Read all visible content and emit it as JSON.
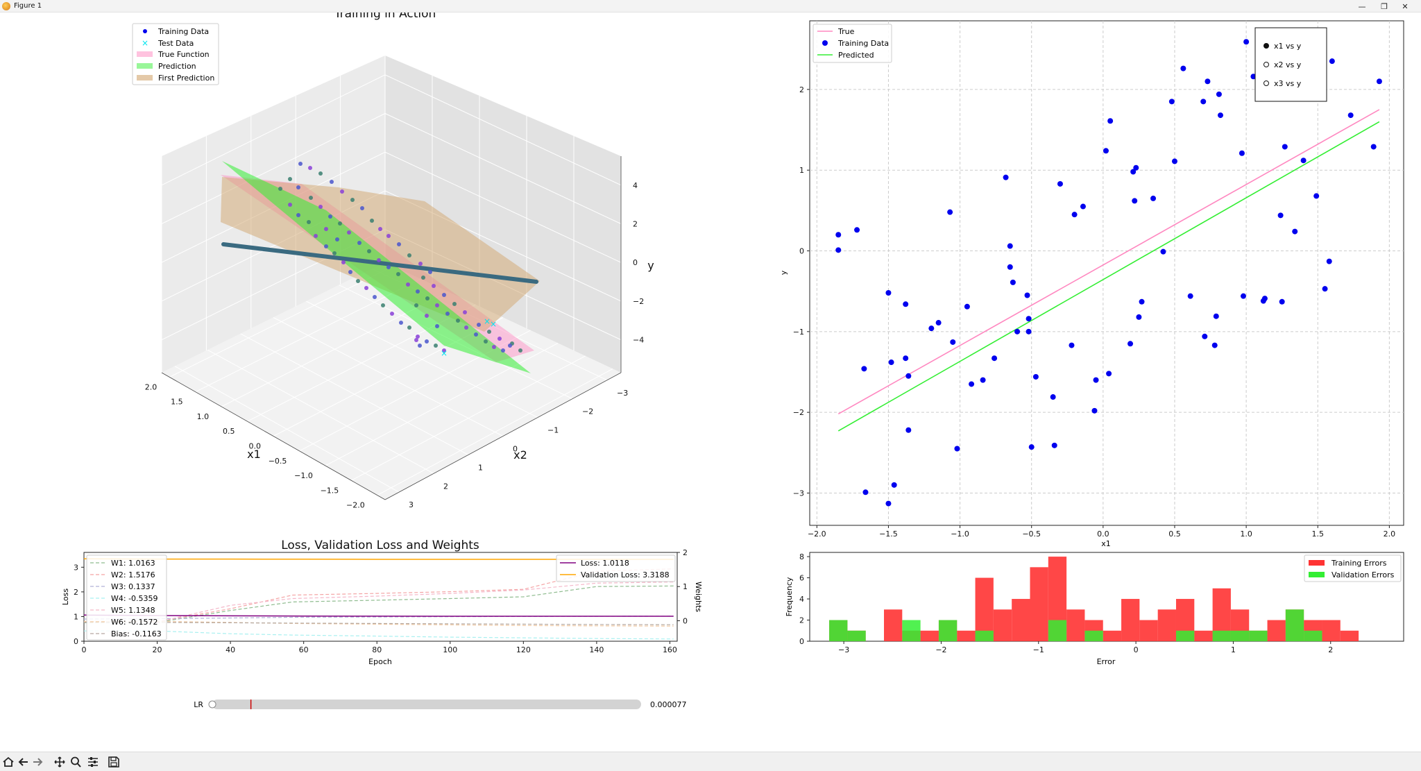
{
  "window": {
    "title": "Figure 1",
    "controls": [
      "minimize-icon",
      "maximize-icon",
      "close-icon"
    ]
  },
  "toolbar": {
    "buttons": [
      "home-icon",
      "back-icon",
      "forward-icon",
      "pan-icon",
      "zoom-icon",
      "configure-subplots-icon",
      "save-icon"
    ]
  },
  "colors": {
    "true": "#ff88c0",
    "pred": "#33ee33",
    "first": "#d2a56e",
    "train": "#0000ee",
    "test": "#00e5ee",
    "loss": "#800080",
    "val": "#ffa500",
    "train_err": "#ff3333",
    "val_err": "#33ee33"
  },
  "chart_data": [
    {
      "type": "scatter",
      "title": "Training in Action",
      "xlabel": "x1",
      "ylabel": "x2",
      "zlabel": "y",
      "x1_ticks": [
        "2.0",
        "1.5",
        "1.0",
        "0.5",
        "0.0",
        "−0.5",
        "−1.0",
        "−1.5",
        "−2.0"
      ],
      "x2_ticks": [
        "−3",
        "−2",
        "−1",
        "0",
        "1",
        "2",
        "3"
      ],
      "y_ticks": [
        "4",
        "2",
        "0",
        "−2",
        "−4"
      ],
      "legend": [
        "Training Data",
        "Test Data",
        "True Function",
        "Prediction",
        "First Prediction"
      ],
      "legend_position": "top-left"
    },
    {
      "type": "line",
      "xlabel": "x1",
      "ylabel": "y",
      "xlim": [
        -2.05,
        2.1
      ],
      "ylim": [
        -3.4,
        2.85
      ],
      "xticks": [
        -2.0,
        -1.5,
        -1.0,
        -0.5,
        0.0,
        0.5,
        1.0,
        1.5,
        2.0
      ],
      "yticks": [
        -3,
        -2,
        -1,
        0,
        1,
        2
      ],
      "legend": [
        "True",
        "Training Data",
        "Predicted"
      ],
      "radio": [
        "x1 vs y",
        "x2 vs y",
        "x3 vs y"
      ],
      "radio_selected": "x1 vs y",
      "series": [
        {
          "name": "True",
          "x": [
            -1.85,
            1.93
          ],
          "y": [
            -2.02,
            1.75
          ]
        },
        {
          "name": "Predicted",
          "x": [
            -1.85,
            1.93
          ],
          "y": [
            -2.23,
            1.6
          ]
        }
      ],
      "points": [
        [
          -1.85,
          0.2
        ],
        [
          -1.85,
          0.01
        ],
        [
          -1.72,
          0.26
        ],
        [
          -1.67,
          -1.46
        ],
        [
          -1.66,
          -2.99
        ],
        [
          -1.5,
          -3.13
        ],
        [
          -1.5,
          -0.52
        ],
        [
          -1.48,
          -1.38
        ],
        [
          -1.46,
          -2.9
        ],
        [
          -1.38,
          -0.66
        ],
        [
          -1.38,
          -1.33
        ],
        [
          -1.36,
          -1.55
        ],
        [
          -1.36,
          -2.22
        ],
        [
          -1.2,
          -0.96
        ],
        [
          -1.15,
          -0.89
        ],
        [
          -1.07,
          0.48
        ],
        [
          -1.05,
          -1.13
        ],
        [
          -1.02,
          -2.45
        ],
        [
          -0.95,
          -0.69
        ],
        [
          -0.92,
          -1.65
        ],
        [
          -0.84,
          -1.6
        ],
        [
          -0.76,
          -1.33
        ],
        [
          -0.68,
          0.91
        ],
        [
          -0.65,
          0.06
        ],
        [
          -0.65,
          -0.2
        ],
        [
          -0.63,
          -0.39
        ],
        [
          -0.6,
          -1.0
        ],
        [
          -0.53,
          -0.55
        ],
        [
          -0.52,
          -0.84
        ],
        [
          -0.52,
          -1.0
        ],
        [
          -0.5,
          -2.43
        ],
        [
          -0.47,
          -1.56
        ],
        [
          -0.35,
          -1.81
        ],
        [
          -0.34,
          -2.41
        ],
        [
          -0.3,
          0.83
        ],
        [
          -0.22,
          -1.17
        ],
        [
          -0.2,
          0.45
        ],
        [
          -0.14,
          0.55
        ],
        [
          -0.06,
          -1.98
        ],
        [
          -0.05,
          -1.6
        ],
        [
          0.02,
          1.24
        ],
        [
          0.05,
          1.61
        ],
        [
          0.04,
          -1.52
        ],
        [
          0.19,
          -1.15
        ],
        [
          0.21,
          0.98
        ],
        [
          0.23,
          1.03
        ],
        [
          0.22,
          0.62
        ],
        [
          0.25,
          -0.82
        ],
        [
          0.27,
          -0.63
        ],
        [
          0.35,
          0.65
        ],
        [
          0.42,
          -0.01
        ],
        [
          0.48,
          1.85
        ],
        [
          0.5,
          1.11
        ],
        [
          0.56,
          2.26
        ],
        [
          0.61,
          -0.56
        ],
        [
          0.7,
          1.85
        ],
        [
          0.73,
          2.1
        ],
        [
          0.71,
          -1.06
        ],
        [
          0.78,
          -1.17
        ],
        [
          0.81,
          1.94
        ],
        [
          0.82,
          1.68
        ],
        [
          0.79,
          -0.81
        ],
        [
          0.97,
          1.21
        ],
        [
          0.98,
          -0.56
        ],
        [
          1.0,
          2.59
        ],
        [
          1.05,
          2.16
        ],
        [
          1.12,
          -0.62
        ],
        [
          1.13,
          -0.59
        ],
        [
          1.24,
          0.44
        ],
        [
          1.25,
          -0.63
        ],
        [
          1.27,
          1.29
        ],
        [
          1.34,
          0.24
        ],
        [
          1.4,
          1.12
        ],
        [
          1.49,
          0.68
        ],
        [
          1.55,
          -0.47
        ],
        [
          1.58,
          -0.13
        ],
        [
          1.6,
          2.35
        ],
        [
          1.73,
          1.68
        ],
        [
          1.89,
          1.29
        ],
        [
          1.93,
          2.1
        ]
      ]
    },
    {
      "type": "line",
      "title": "Loss, Validation Loss and Weights",
      "xlabel": "Epoch",
      "ylabel": "Loss",
      "ylabel_right": "Weights",
      "xlim": [
        0,
        162
      ],
      "ylim": [
        0,
        3.6
      ],
      "xticks": [
        0,
        20,
        40,
        60,
        80,
        100,
        120,
        140,
        160
      ],
      "yticks": [
        0,
        1,
        2,
        3
      ],
      "yticks_right": [
        0,
        1,
        2
      ],
      "ylim_right": [
        -0.6,
        2.0
      ],
      "legend_weights": [
        "W1: 1.0163",
        "W2: 1.5176",
        "W3: 0.1337",
        "W4: -0.5359",
        "W5: 1.1348",
        "W6: -0.1572",
        "Bias: -0.1163"
      ],
      "legend_loss": [
        "Loss: 1.0118",
        "Validation Loss: 3.3188"
      ],
      "series": [
        {
          "name": "Loss: 1.0118",
          "x": [
            0,
            20,
            40,
            60,
            80,
            100,
            120,
            140,
            161
          ],
          "y": [
            1.06,
            1.04,
            1.03,
            1.02,
            1.015,
            1.013,
            1.012,
            1.012,
            1.0118
          ]
        },
        {
          "name": "Validation Loss: 3.3188",
          "x": [
            0,
            20,
            40,
            60,
            80,
            100,
            120,
            140,
            161
          ],
          "y": [
            3.34,
            3.33,
            3.33,
            3.325,
            3.32,
            3.32,
            3.319,
            3.319,
            3.3188
          ]
        }
      ],
      "weights": [
        {
          "name": "W1: 1.0163",
          "color": "#8fbc8f",
          "x": [
            0,
            20,
            40,
            57,
            80,
            100,
            120,
            140,
            161
          ],
          "y": [
            -0.06,
            -0.05,
            0.3,
            0.55,
            0.6,
            0.65,
            0.7,
            1.0,
            1.0163
          ]
        },
        {
          "name": "W2: 1.5176",
          "color": "#f4a4a4",
          "x": [
            0,
            20,
            40,
            57,
            80,
            100,
            120,
            140,
            161
          ],
          "y": [
            -0.04,
            -0.03,
            0.35,
            0.75,
            0.8,
            0.85,
            0.92,
            1.45,
            1.5176
          ]
        },
        {
          "name": "W3: 0.1337",
          "color": "#b0b0d8",
          "x": [
            0,
            20,
            40,
            57,
            80,
            100,
            120,
            140,
            161
          ],
          "y": [
            0.05,
            0.06,
            0.08,
            0.1,
            0.11,
            0.12,
            0.125,
            0.13,
            0.1337
          ]
        },
        {
          "name": "W4: -0.5359",
          "color": "#a8f0f0",
          "x": [
            0,
            20,
            40,
            57,
            80,
            100,
            120,
            140,
            161
          ],
          "y": [
            -0.3,
            -0.3,
            -0.38,
            -0.42,
            -0.45,
            -0.48,
            -0.5,
            -0.52,
            -0.5359
          ]
        },
        {
          "name": "W5: 1.1348",
          "color": "#f4b6c8",
          "x": [
            0,
            20,
            40,
            57,
            80,
            100,
            120,
            140,
            161
          ],
          "y": [
            -0.05,
            -0.04,
            0.45,
            0.65,
            0.72,
            0.8,
            0.9,
            1.1,
            1.1348
          ]
        },
        {
          "name": "W6: -0.1572",
          "color": "#f0c8a0",
          "x": [
            0,
            20,
            40,
            57,
            80,
            100,
            120,
            140,
            161
          ],
          "y": [
            -0.02,
            -0.02,
            -0.05,
            -0.08,
            -0.1,
            -0.12,
            -0.14,
            -0.15,
            -0.1572
          ]
        },
        {
          "name": "Bias: -0.1163",
          "color": "#b4a8a0",
          "x": [
            0,
            20,
            40,
            57,
            80,
            100,
            120,
            140,
            161
          ],
          "y": [
            -0.05,
            -0.05,
            -0.06,
            -0.07,
            -0.08,
            -0.09,
            -0.1,
            -0.11,
            -0.1163
          ]
        }
      ]
    },
    {
      "type": "bar",
      "xlabel": "Error",
      "ylabel": "Frequency",
      "xlim": [
        -3.35,
        2.75
      ],
      "ylim": [
        0,
        8.4
      ],
      "xticks": [
        -3,
        -2,
        -1,
        0,
        1,
        2
      ],
      "yticks": [
        0,
        2,
        4,
        6,
        8
      ],
      "legend": [
        "Training Errors",
        "Validation Errors"
      ],
      "bin_start": -3.15,
      "bin_width": 0.1875,
      "series": [
        {
          "name": "Training Errors",
          "values": [
            2,
            1,
            0,
            3,
            1,
            1,
            2,
            1,
            6,
            3,
            4,
            7,
            8,
            3,
            2,
            1,
            4,
            2,
            3,
            4,
            1,
            5,
            3,
            1,
            2,
            3,
            2,
            2,
            1
          ]
        },
        {
          "name": "Validation Errors",
          "values": [
            2,
            1,
            0,
            0,
            2,
            0,
            2,
            0,
            1,
            0,
            0,
            0,
            2,
            0,
            1,
            0,
            0,
            0,
            0,
            1,
            0,
            1,
            1,
            1,
            0,
            3,
            1,
            0,
            0
          ]
        }
      ]
    },
    {
      "type": "slider",
      "label": "LR",
      "value_text": "0.000077",
      "fraction": 0.0,
      "marker_fraction": 0.09
    }
  ]
}
